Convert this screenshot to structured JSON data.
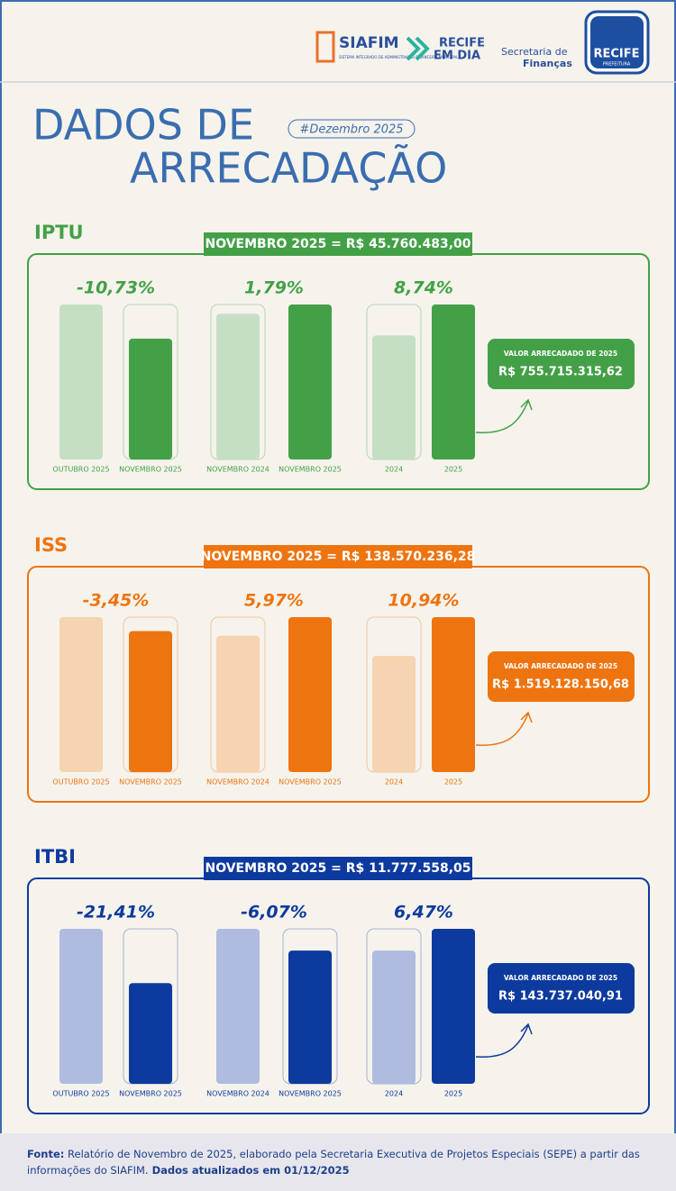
{
  "header": {
    "siafim": "SIAFIM",
    "siafim_sub": "SISTEMA INTEGRADO DE ADMINISTRAÇÃO FINANCEIRA MUNICIPAL",
    "recife_em_dia": [
      "RECIFE",
      "EM DIA"
    ],
    "secretaria": [
      "Secretaria de",
      "Finanças"
    ],
    "prefeitura": [
      "RECIFE",
      "PREFEITURA"
    ]
  },
  "title": [
    "DADOS DE",
    "ARRECADAÇÃO"
  ],
  "tag": "#Dezembro 2025",
  "sections": [
    {
      "name": "IPTU",
      "color": "#43a047",
      "light_color": "#c5dfc5",
      "banner": "NOVEMBRO 2025 = R$ 45.760.483,00",
      "comparisons": [
        {
          "change": "-10,73%",
          "bars": [
            {
              "label": "OUTUBRO 2025",
              "value": 100
            },
            {
              "label": "NOVEMBRO 2025",
              "value": 78
            }
          ]
        },
        {
          "change": "1,79%",
          "bars": [
            {
              "label": "NOVEMBRO 2024",
              "value": 94
            },
            {
              "label": "NOVEMBRO 2025",
              "value": 100
            }
          ]
        },
        {
          "change": "8,74%",
          "bars": [
            {
              "label": "2024",
              "value": 80
            },
            {
              "label": "2025",
              "value": 100
            }
          ]
        }
      ],
      "total_label": "VALOR ARRECADADO DE 2025",
      "total": "R$ 755.715.315,62"
    },
    {
      "name": "ISS",
      "color": "#ee7410",
      "light_color": "#f6d3b1",
      "banner": "NOVEMBRO 2025 = R$ 138.570.236,28",
      "comparisons": [
        {
          "change": "-3,45%",
          "bars": [
            {
              "label": "OUTUBRO 2025",
              "value": 100
            },
            {
              "label": "NOVEMBRO 2025",
              "value": 91
            }
          ]
        },
        {
          "change": "5,97%",
          "bars": [
            {
              "label": "NOVEMBRO 2024",
              "value": 88
            },
            {
              "label": "NOVEMBRO 2025",
              "value": 100
            }
          ]
        },
        {
          "change": "10,94%",
          "bars": [
            {
              "label": "2024",
              "value": 75
            },
            {
              "label": "2025",
              "value": 100
            }
          ]
        }
      ],
      "total_label": "VALOR ARRECADADO DE 2025",
      "total": "R$ 1.519.128.150,68"
    },
    {
      "name": "ITBI",
      "color": "#0d3a9e",
      "light_color": "#afbce0",
      "banner": "NOVEMBRO 2025 =  R$ 11.777.558,05",
      "comparisons": [
        {
          "change": "-21,41%",
          "bars": [
            {
              "label": "OUTUBRO 2025",
              "value": 100
            },
            {
              "label": "NOVEMBRO 2025",
              "value": 65
            }
          ]
        },
        {
          "change": "-6,07%",
          "bars": [
            {
              "label": "NOVEMBRO 2024",
              "value": 100
            },
            {
              "label": "NOVEMBRO 2025",
              "value": 86
            }
          ]
        },
        {
          "change": "6,47%",
          "bars": [
            {
              "label": "2024",
              "value": 86
            },
            {
              "label": "2025",
              "value": 100
            }
          ]
        }
      ],
      "total_label": "VALOR ARRECADADO DE 2025",
      "total": "R$ 143.737.040,91"
    }
  ],
  "footer": {
    "label": "Fonte:",
    "text": " Relatório de  Novembro de 2025, elaborado pela Secretaria Executiva de Projetos Especiais (SEPE) a partir das informações do SIAFIM.",
    "updated": " Dados atualizados em 01/12/2025"
  }
}
